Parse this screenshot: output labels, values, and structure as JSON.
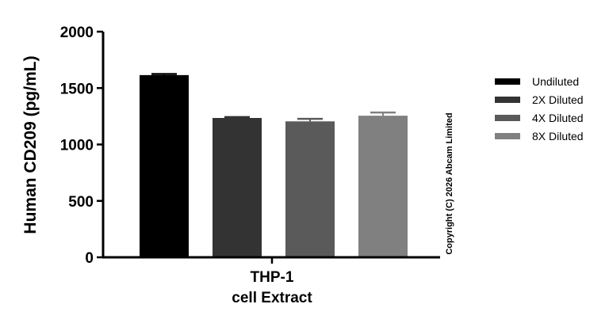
{
  "chart_data": {
    "type": "bar",
    "title": "",
    "ylabel": "Human CD209 (pg/mL)",
    "xlabel_lines": [
      "THP-1",
      "cell Extract"
    ],
    "ylim": [
      0,
      2000
    ],
    "yticks": [
      0,
      500,
      1000,
      1500,
      2000
    ],
    "categories": [
      "THP-1 cell Extract"
    ],
    "series": [
      {
        "name": "Undiluted",
        "values": [
          1615
        ],
        "error": [
          10
        ],
        "color": "#000000"
      },
      {
        "name": "2X Diluted",
        "values": [
          1235
        ],
        "error": [
          8
        ],
        "color": "#333333"
      },
      {
        "name": "4X Diluted",
        "values": [
          1205
        ],
        "error": [
          22
        ],
        "color": "#5a5a5a"
      },
      {
        "name": "8X Diluted",
        "values": [
          1255
        ],
        "error": [
          28
        ],
        "color": "#808080"
      }
    ],
    "legend_position": "right",
    "grid": false
  },
  "copyright": "Copyright (C) 2026 Abcam Limited"
}
